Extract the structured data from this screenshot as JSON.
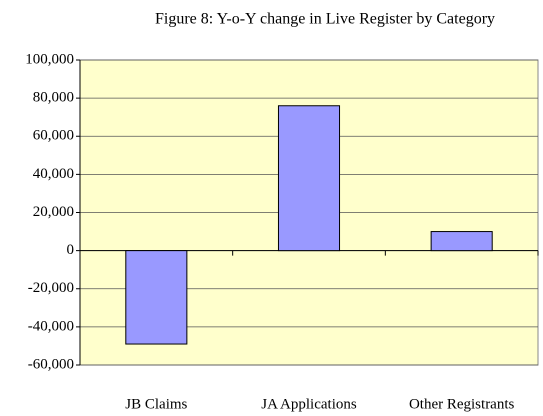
{
  "chart_data": {
    "type": "bar",
    "title": "Figure 8: Y-o-Y change in Live Register by Category",
    "categories": [
      "JB Claims",
      "JA Applications",
      "Other Registrants"
    ],
    "values": [
      -49000,
      76000,
      10000
    ],
    "color": "#9999ff",
    "ylim": [
      -60000,
      100000
    ],
    "yticks": [
      {
        "value": -60000,
        "label": "-60,000"
      },
      {
        "value": -40000,
        "label": "-40,000"
      },
      {
        "value": -20000,
        "label": "-20,000"
      },
      0,
      {
        "value": 20000,
        "label": "20,000"
      },
      {
        "value": 40000,
        "label": "40,000"
      },
      {
        "value": 60000,
        "label": "60,000"
      },
      {
        "value": 80000,
        "label": "80,000"
      },
      {
        "value": 100000,
        "label": "100,000"
      }
    ],
    "grid": true
  }
}
